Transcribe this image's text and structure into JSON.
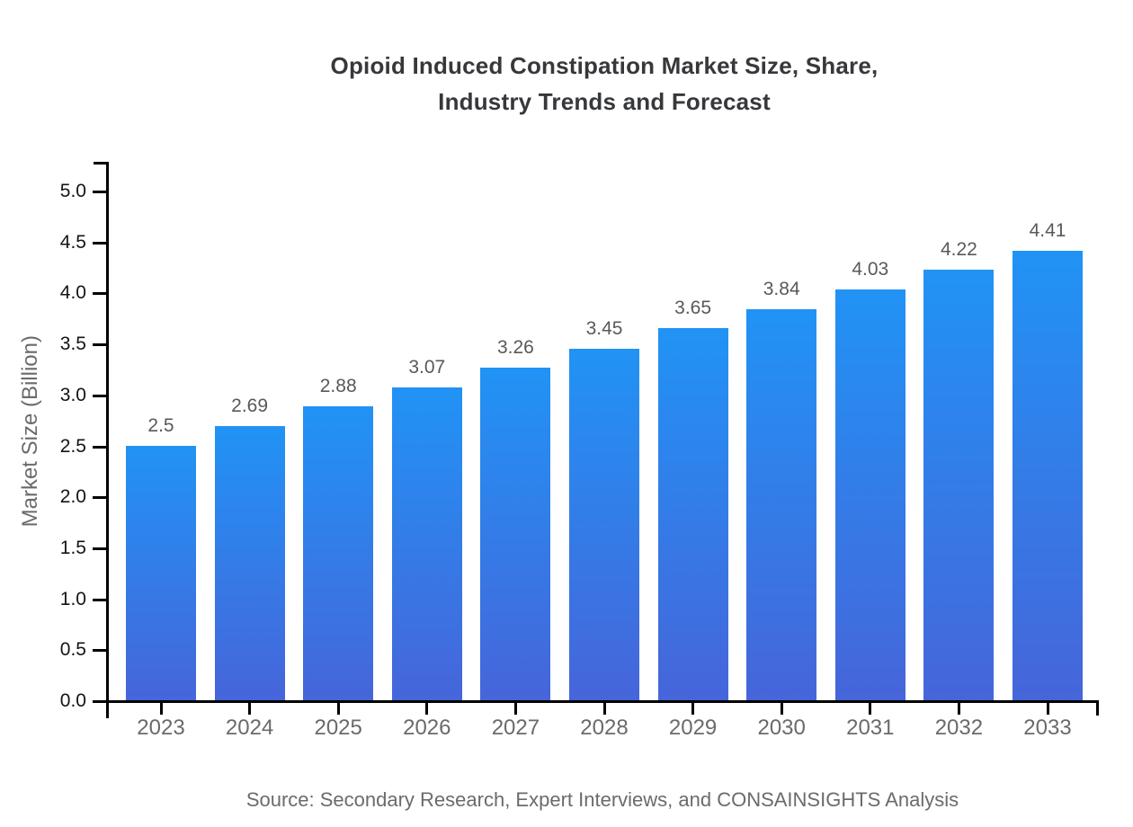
{
  "page": {
    "background": "#ffffff"
  },
  "title": {
    "line1": "Opioid Induced Constipation Market Size, Share,",
    "line2": "Industry Trends and Forecast"
  },
  "source_note": "Source: Secondary Research, Expert Interviews, and CONSAINSIGHTS Analysis",
  "chart_data": {
    "type": "bar",
    "title": "Opioid Induced Constipation Market Size, Share, Industry Trends and Forecast",
    "categories": [
      "2023",
      "2024",
      "2025",
      "2026",
      "2027",
      "2028",
      "2029",
      "2030",
      "2031",
      "2032",
      "2033"
    ],
    "values": [
      2.5,
      2.69,
      2.88,
      3.07,
      3.26,
      3.45,
      3.65,
      3.84,
      4.03,
      4.22,
      4.41
    ],
    "value_labels": [
      "2.5",
      "2.69",
      "2.88",
      "3.07",
      "3.26",
      "3.45",
      "3.65",
      "3.84",
      "4.03",
      "4.22",
      "4.41"
    ],
    "xlabel": "",
    "ylabel": "Market Size (Billion)",
    "ylim": [
      0,
      5.29
    ],
    "yticks": [
      0.0,
      0.5,
      1.0,
      1.5,
      2.0,
      2.5,
      3.0,
      3.5,
      4.0,
      4.5,
      5.0
    ],
    "ytick_labels": [
      "0.0",
      "0.5",
      "1.0",
      "1.5",
      "2.0",
      "2.5",
      "3.0",
      "3.5",
      "4.0",
      "4.5",
      "5.0"
    ],
    "grid": false,
    "legend": false,
    "bar_gradient_top": "#2193F5",
    "bar_gradient_bottom": "#4665DA"
  },
  "colors": {
    "title": "#36383b",
    "axis": "#000000",
    "ytick_label": "#141414",
    "xtick_label": "#6a6a6a",
    "value_label": "#58595c",
    "ylabel": "#6b6b6b",
    "source": "#6b6b6b"
  }
}
